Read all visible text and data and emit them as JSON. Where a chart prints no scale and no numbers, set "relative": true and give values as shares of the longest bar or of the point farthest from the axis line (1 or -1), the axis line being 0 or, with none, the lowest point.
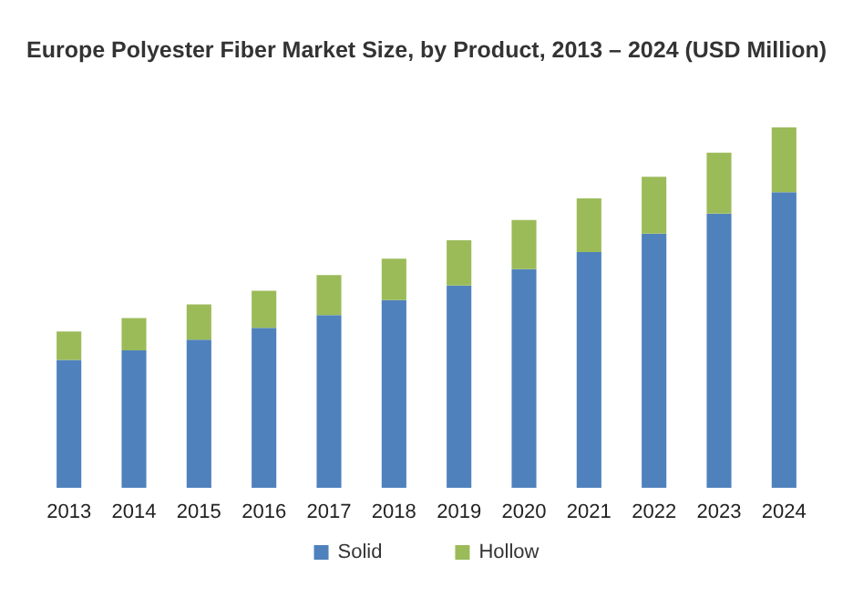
{
  "chart_data": {
    "type": "bar",
    "title": "Europe Polyester Fiber Market Size, by Product, 2013 – 2024 (USD Million)",
    "categories": [
      "2013",
      "2014",
      "2015",
      "2016",
      "2017",
      "2018",
      "2019",
      "2020",
      "2021",
      "2022",
      "2023",
      "2024"
    ],
    "stacked": true,
    "relative": true,
    "legend": "bottom",
    "series": [
      {
        "name": "Solid",
        "color": "#4f81bd",
        "values": [
          0.355,
          0.381,
          0.411,
          0.444,
          0.479,
          0.521,
          0.561,
          0.607,
          0.654,
          0.705,
          0.761,
          0.82
        ]
      },
      {
        "name": "Hollow",
        "color": "#9bbb59",
        "values": [
          0.079,
          0.09,
          0.098,
          0.103,
          0.111,
          0.115,
          0.126,
          0.136,
          0.149,
          0.158,
          0.169,
          0.18
        ]
      }
    ]
  }
}
